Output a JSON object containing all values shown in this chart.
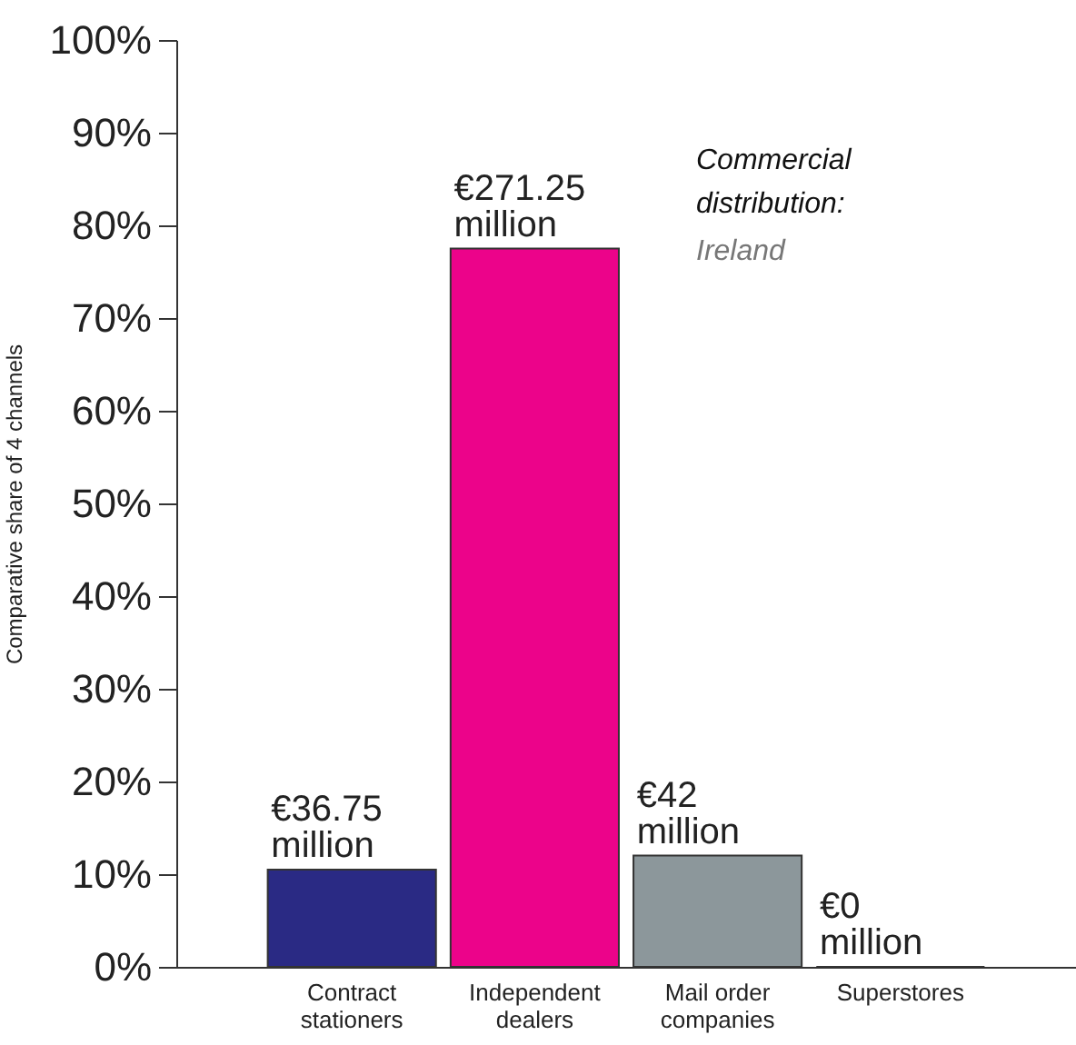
{
  "chart_data": {
    "type": "bar",
    "title": "Commercial distribution:",
    "subtitle": "Ireland",
    "ylabel": "Comparative share of 4 channels",
    "categories": [
      "Contract stationers",
      "Independent dealers",
      "Mail order companies",
      "Superstores"
    ],
    "values": [
      10.5,
      77.5,
      12,
      0
    ],
    "colors": [
      "#2a2a84",
      "#ec038a",
      "#8c979b",
      "#222222"
    ],
    "annotations": [
      {
        "text": "€36.75 million",
        "x": "Contract stationers",
        "y": 10.5
      },
      {
        "text": "€271.25 million",
        "x": "Independent dealers",
        "y": 77.5
      },
      {
        "text": "€42 million",
        "x": "Mail order companies",
        "y": 12
      },
      {
        "text": "€0 million",
        "x": "Superstores",
        "y": 0
      }
    ],
    "ylim": [
      0,
      100
    ],
    "yticks": [
      {
        "value": 0,
        "label": "0%"
      },
      {
        "value": 10,
        "label": "10%"
      },
      {
        "value": 20,
        "label": "20%"
      },
      {
        "value": 30,
        "label": "30%"
      },
      {
        "value": 40,
        "label": "40%"
      },
      {
        "value": 50,
        "label": "50%"
      },
      {
        "value": 60,
        "label": "60%"
      },
      {
        "value": 70,
        "label": "70%"
      },
      {
        "value": 80,
        "label": "80%"
      },
      {
        "value": 90,
        "label": "90%"
      },
      {
        "value": 100,
        "label": "100%"
      }
    ],
    "grid": false
  }
}
